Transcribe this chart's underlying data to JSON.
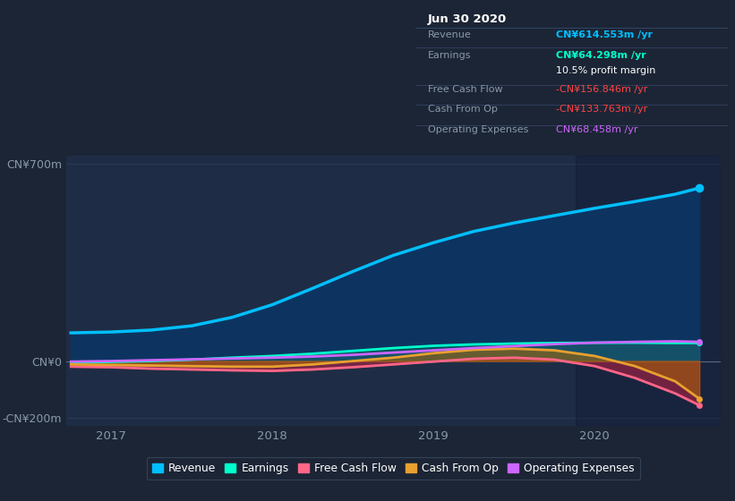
{
  "bg_color": "#1c2535",
  "plot_bg_color": "#1e2d45",
  "fig_bg_color": "#1c2535",
  "grid_color": "#2a3a55",
  "title_box": {
    "date": "Jun 30 2020",
    "rows": [
      {
        "label": "Revenue",
        "value": "CN¥614.553m /yr",
        "value_color": "#00bfff",
        "bold": true
      },
      {
        "label": "Earnings",
        "value": "CN¥64.298m /yr",
        "value_color": "#00ffcc",
        "bold": true
      },
      {
        "label": "",
        "value": "10.5% profit margin",
        "value_color": "#ffffff",
        "bold": false
      },
      {
        "label": "Free Cash Flow",
        "value": "-CN¥156.846m /yr",
        "value_color": "#ff4444",
        "bold": false
      },
      {
        "label": "Cash From Op",
        "value": "-CN¥133.763m /yr",
        "value_color": "#ff4444",
        "bold": false
      },
      {
        "label": "Operating Expenses",
        "value": "CN¥68.458m /yr",
        "value_color": "#cc66ff",
        "bold": false
      }
    ]
  },
  "ylim": [
    -230,
    730
  ],
  "yticks": [
    -200,
    0,
    700
  ],
  "ytick_labels": [
    "-CN¥200m",
    "CN¥0",
    "CN¥700m"
  ],
  "xlim": [
    2016.72,
    2020.78
  ],
  "xticks": [
    2017,
    2018,
    2019,
    2020
  ],
  "revenue_x": [
    2016.75,
    2017.0,
    2017.25,
    2017.5,
    2017.75,
    2018.0,
    2018.25,
    2018.5,
    2018.75,
    2019.0,
    2019.25,
    2019.5,
    2019.75,
    2020.0,
    2020.25,
    2020.5,
    2020.65
  ],
  "revenue_y": [
    100,
    103,
    110,
    125,
    155,
    200,
    258,
    318,
    375,
    420,
    460,
    490,
    516,
    542,
    566,
    592,
    614
  ],
  "earnings_x": [
    2016.75,
    2017.0,
    2017.25,
    2017.5,
    2017.75,
    2018.0,
    2018.25,
    2018.5,
    2018.75,
    2019.0,
    2019.25,
    2019.5,
    2019.75,
    2020.0,
    2020.25,
    2020.5,
    2020.65
  ],
  "earnings_y": [
    -5,
    -3,
    0,
    5,
    12,
    18,
    26,
    36,
    46,
    54,
    59,
    62,
    64,
    65,
    65,
    64,
    64
  ],
  "fcf_x": [
    2016.75,
    2017.0,
    2017.25,
    2017.5,
    2017.75,
    2018.0,
    2018.25,
    2018.5,
    2018.75,
    2019.0,
    2019.25,
    2019.5,
    2019.75,
    2020.0,
    2020.25,
    2020.5,
    2020.65
  ],
  "fcf_y": [
    -20,
    -22,
    -27,
    -30,
    -33,
    -35,
    -30,
    -22,
    -12,
    -2,
    8,
    12,
    5,
    -18,
    -60,
    -115,
    -157
  ],
  "cfo_x": [
    2016.75,
    2017.0,
    2017.25,
    2017.5,
    2017.75,
    2018.0,
    2018.25,
    2018.5,
    2018.75,
    2019.0,
    2019.25,
    2019.5,
    2019.75,
    2020.0,
    2020.25,
    2020.5,
    2020.65
  ],
  "cfo_y": [
    -12,
    -14,
    -16,
    -18,
    -20,
    -20,
    -12,
    0,
    12,
    28,
    40,
    44,
    38,
    18,
    -18,
    -72,
    -134
  ],
  "oe_x": [
    2016.75,
    2017.0,
    2017.25,
    2017.5,
    2017.75,
    2018.0,
    2018.25,
    2018.5,
    2018.75,
    2019.0,
    2019.25,
    2019.5,
    2019.75,
    2020.0,
    2020.25,
    2020.5,
    2020.65
  ],
  "oe_y": [
    -2,
    0,
    3,
    6,
    9,
    12,
    16,
    22,
    30,
    38,
    46,
    53,
    60,
    65,
    68,
    70,
    68
  ],
  "revenue_color": "#00bfff",
  "earnings_color": "#00ffcc",
  "fcf_color": "#ff6688",
  "cfo_color": "#e8a030",
  "oe_color": "#cc66ff",
  "revenue_fill": "#0a3a6e",
  "legend_items": [
    {
      "label": "Revenue",
      "color": "#00bfff"
    },
    {
      "label": "Earnings",
      "color": "#00ffcc"
    },
    {
      "label": "Free Cash Flow",
      "color": "#ff6688"
    },
    {
      "label": "Cash From Op",
      "color": "#e8a030"
    },
    {
      "label": "Operating Expenses",
      "color": "#cc66ff"
    }
  ]
}
